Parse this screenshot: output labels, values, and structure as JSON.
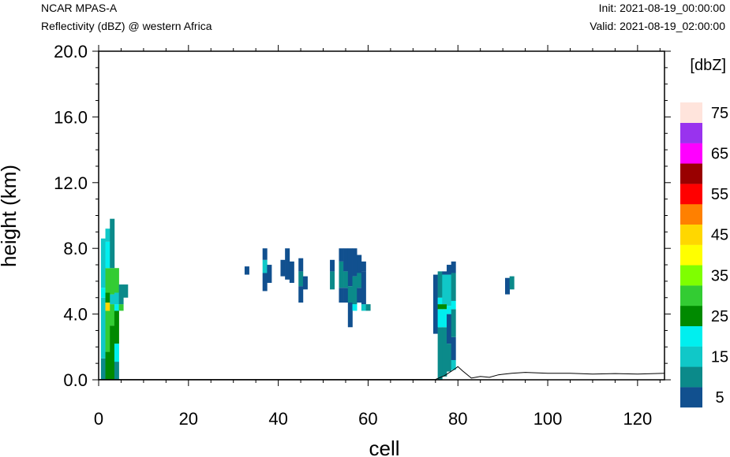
{
  "header": {
    "model": "NCAR MPAS-A",
    "field": "Reflectivity (dBZ) @ western Africa",
    "init": "Init: 2021-08-19_00:00:00",
    "valid": "Valid: 2021-08-19_02:00:00"
  },
  "chart_data": {
    "type": "heatmap",
    "xlabel": "cell",
    "ylabel": "height (km)",
    "xlim": [
      0,
      126
    ],
    "ylim": [
      0,
      20
    ],
    "xticks": [
      0,
      20,
      40,
      60,
      80,
      100,
      120
    ],
    "yticks": [
      "0.0",
      "4.0",
      "8.0",
      "12.0",
      "16.0",
      "20.0"
    ],
    "colorbar": {
      "title": "[dbZ]",
      "levels": [
        5,
        10,
        15,
        20,
        25,
        30,
        35,
        40,
        45,
        50,
        55,
        60,
        65,
        70,
        75
      ],
      "labels": [
        "5",
        "15",
        "25",
        "35",
        "45",
        "55",
        "65",
        "75"
      ],
      "colors": [
        "#11508f",
        "#0b8a8a",
        "#10c8c8",
        "#00efef",
        "#008a00",
        "#33cc33",
        "#7fff00",
        "#ffff00",
        "#ffd700",
        "#ff8000",
        "#ff0000",
        "#990000",
        "#ff00ff",
        "#9933ee",
        "#ffe4dc"
      ]
    },
    "terrain": [
      [
        0,
        0.02
      ],
      [
        75,
        0.02
      ],
      [
        77,
        0.25
      ],
      [
        79,
        0.6
      ],
      [
        80,
        0.8
      ],
      [
        81,
        0.55
      ],
      [
        83,
        0.1
      ],
      [
        85,
        0.2
      ],
      [
        87,
        0.15
      ],
      [
        89,
        0.3
      ],
      [
        92,
        0.4
      ],
      [
        95,
        0.45
      ],
      [
        100,
        0.4
      ],
      [
        105,
        0.4
      ],
      [
        110,
        0.35
      ],
      [
        115,
        0.38
      ],
      [
        120,
        0.35
      ],
      [
        126,
        0.4
      ]
    ],
    "columns": [
      {
        "x": 1,
        "segments": [
          [
            0,
            1.3,
            10
          ],
          [
            1.3,
            5.0,
            15
          ],
          [
            5.0,
            5.6,
            20
          ],
          [
            5.6,
            8.6,
            15
          ]
        ]
      },
      {
        "x": 2,
        "segments": [
          [
            0,
            1.7,
            25
          ],
          [
            1.7,
            4.2,
            30
          ],
          [
            4.2,
            4.7,
            45
          ],
          [
            4.7,
            5.3,
            25
          ],
          [
            5.3,
            6.8,
            30
          ],
          [
            6.8,
            8.4,
            20
          ],
          [
            8.4,
            9.2,
            15
          ]
        ]
      },
      {
        "x": 3,
        "segments": [
          [
            0,
            3.3,
            25
          ],
          [
            3.3,
            4.6,
            30
          ],
          [
            4.6,
            5.2,
            15
          ],
          [
            5.2,
            6.8,
            30
          ],
          [
            6.8,
            9.8,
            10
          ]
        ]
      },
      {
        "x": 4,
        "segments": [
          [
            0,
            1.1,
            10
          ],
          [
            1.1,
            2.2,
            20
          ],
          [
            2.2,
            4.2,
            25
          ],
          [
            4.2,
            4.6,
            20
          ],
          [
            4.6,
            5.3,
            15
          ],
          [
            5.3,
            6.8,
            30
          ]
        ]
      },
      {
        "x": 5,
        "segments": [
          [
            4.2,
            4.6,
            30
          ],
          [
            4.6,
            5.8,
            10
          ]
        ]
      },
      {
        "x": 6,
        "segments": [
          [
            5.0,
            5.8,
            10
          ]
        ]
      },
      {
        "x": 33,
        "segments": [
          [
            6.4,
            6.9,
            5
          ]
        ]
      },
      {
        "x": 37,
        "segments": [
          [
            5.4,
            6.5,
            5
          ],
          [
            6.5,
            7.3,
            15
          ],
          [
            7.3,
            8.0,
            5
          ]
        ]
      },
      {
        "x": 38,
        "segments": [
          [
            5.9,
            7.0,
            5
          ]
        ]
      },
      {
        "x": 41,
        "segments": [
          [
            6.3,
            7.3,
            5
          ]
        ]
      },
      {
        "x": 42,
        "segments": [
          [
            6.1,
            8.0,
            5
          ]
        ]
      },
      {
        "x": 43,
        "segments": [
          [
            5.9,
            7.2,
            5
          ]
        ]
      },
      {
        "x": 45,
        "segments": [
          [
            4.7,
            5.7,
            5
          ],
          [
            5.7,
            6.6,
            10
          ],
          [
            6.6,
            7.4,
            5
          ]
        ]
      },
      {
        "x": 46,
        "segments": [
          [
            5.5,
            6.3,
            5
          ]
        ]
      },
      {
        "x": 52,
        "segments": [
          [
            5.5,
            6.6,
            10
          ],
          [
            6.6,
            7.3,
            5
          ]
        ]
      },
      {
        "x": 54,
        "segments": [
          [
            4.7,
            5.6,
            5
          ],
          [
            5.6,
            7.2,
            10
          ],
          [
            7.2,
            8.0,
            5
          ]
        ]
      },
      {
        "x": 55,
        "segments": [
          [
            4.7,
            5.6,
            5
          ],
          [
            5.6,
            6.6,
            10
          ],
          [
            6.6,
            8.0,
            5
          ]
        ]
      },
      {
        "x": 56,
        "segments": [
          [
            3.2,
            4.7,
            5
          ],
          [
            4.7,
            5.7,
            10
          ],
          [
            5.7,
            8.0,
            5
          ]
        ]
      },
      {
        "x": 57,
        "segments": [
          [
            4.2,
            4.6,
            20
          ],
          [
            4.6,
            6.3,
            10
          ],
          [
            6.3,
            8.0,
            5
          ]
        ]
      },
      {
        "x": 58,
        "segments": [
          [
            4.7,
            5.6,
            5
          ],
          [
            5.6,
            6.5,
            10
          ],
          [
            6.5,
            7.6,
            5
          ]
        ]
      },
      {
        "x": 59,
        "segments": [
          [
            4.2,
            4.6,
            15
          ],
          [
            4.6,
            6.6,
            5
          ],
          [
            6.6,
            7.2,
            5
          ]
        ]
      },
      {
        "x": 60,
        "segments": [
          [
            4.2,
            4.6,
            10
          ]
        ]
      },
      {
        "x": 75,
        "segments": [
          [
            2.8,
            6.4,
            5
          ]
        ]
      },
      {
        "x": 76,
        "segments": [
          [
            0,
            3.2,
            10
          ],
          [
            3.2,
            4.3,
            20
          ],
          [
            4.3,
            4.6,
            25
          ],
          [
            4.6,
            5.0,
            20
          ],
          [
            5.0,
            6.6,
            10
          ]
        ]
      },
      {
        "x": 77,
        "segments": [
          [
            0.2,
            3.2,
            10
          ],
          [
            3.2,
            4.3,
            20
          ],
          [
            4.3,
            4.6,
            25
          ],
          [
            4.6,
            6.4,
            15
          ],
          [
            6.4,
            6.6,
            5
          ]
        ]
      },
      {
        "x": 78,
        "segments": [
          [
            0.5,
            2.2,
            10
          ],
          [
            2.2,
            4.0,
            5
          ],
          [
            4.0,
            4.5,
            20
          ],
          [
            4.5,
            6.4,
            15
          ],
          [
            6.4,
            7.0,
            5
          ]
        ]
      },
      {
        "x": 79,
        "segments": [
          [
            0.6,
            1.2,
            15
          ],
          [
            1.2,
            2.6,
            5
          ],
          [
            2.6,
            4.3,
            10
          ],
          [
            4.3,
            4.8,
            20
          ],
          [
            4.8,
            6.5,
            10
          ],
          [
            6.5,
            7.2,
            5
          ]
        ]
      },
      {
        "x": 91,
        "segments": [
          [
            5.2,
            6.2,
            5
          ]
        ]
      },
      {
        "x": 92,
        "segments": [
          [
            5.5,
            6.3,
            10
          ]
        ]
      }
    ]
  }
}
